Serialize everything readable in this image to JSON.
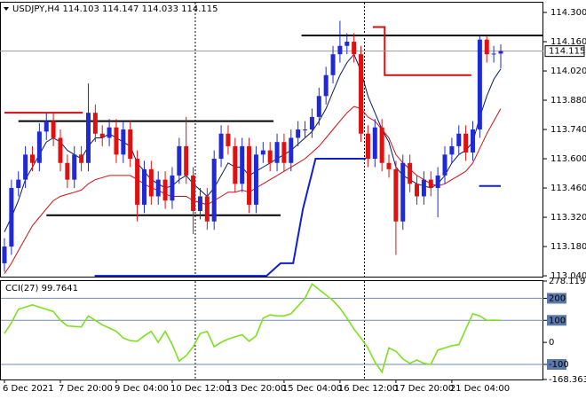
{
  "chart_data": [
    {
      "type": "candlestick",
      "title": "USDJPY,H4",
      "categories": [
        "6 Dec 2021",
        null,
        null,
        null,
        null,
        null,
        null,
        null,
        "7 Dec 20:00",
        null,
        null,
        null,
        null,
        null,
        null,
        null,
        "9 Dec 04:00",
        null,
        null,
        null,
        null,
        null,
        null,
        null,
        "10 Dec 12:00",
        null,
        null,
        null,
        null,
        null,
        null,
        null,
        "13 Dec 20:00",
        null,
        null,
        null,
        null,
        null,
        null,
        null,
        "15 Dec 04:00",
        null,
        null,
        null,
        null,
        null,
        null,
        null,
        "16 Dec 12:00",
        null,
        null,
        null,
        null,
        null,
        null,
        null,
        "17 Dec 20:00",
        null,
        null,
        null,
        null,
        null,
        null,
        null,
        "21 Dec 04:00",
        null,
        null,
        null,
        null,
        null,
        null,
        null
      ],
      "open": [
        113.1,
        113.18,
        113.46,
        113.5,
        113.62,
        113.58,
        113.73,
        113.78,
        113.7,
        113.58,
        113.5,
        113.62,
        113.58,
        113.82,
        113.72,
        113.7,
        113.75,
        113.62,
        113.74,
        113.6,
        113.38,
        113.55,
        113.42,
        113.5,
        113.4,
        113.52,
        113.66,
        113.52,
        113.35,
        113.42,
        113.3,
        113.6,
        113.72,
        113.66,
        113.48,
        113.66,
        113.38,
        113.62,
        113.64,
        113.58,
        113.68,
        113.58,
        113.7,
        113.74,
        113.74,
        113.8,
        113.9,
        114.0,
        114.1,
        114.14,
        114.16,
        114.1,
        113.72,
        113.6,
        113.75,
        113.58,
        113.55,
        113.3,
        113.58,
        113.48,
        113.42,
        113.5,
        113.46,
        113.52,
        113.62,
        113.66,
        113.72,
        113.63,
        113.74,
        114.17,
        114.1,
        114.103
      ],
      "high": [
        113.22,
        113.5,
        113.54,
        113.66,
        113.66,
        113.77,
        113.82,
        113.82,
        113.74,
        113.62,
        113.66,
        113.66,
        113.96,
        113.86,
        113.76,
        113.79,
        113.79,
        113.78,
        113.78,
        113.64,
        113.59,
        113.59,
        113.54,
        113.54,
        113.56,
        113.7,
        113.8,
        113.56,
        113.46,
        113.46,
        113.64,
        113.76,
        113.76,
        113.7,
        113.7,
        113.7,
        113.66,
        113.68,
        113.68,
        113.72,
        113.72,
        113.74,
        113.78,
        113.78,
        113.84,
        113.94,
        114.04,
        114.14,
        114.26,
        114.2,
        114.2,
        114.14,
        113.76,
        113.79,
        113.79,
        113.62,
        113.59,
        113.62,
        113.62,
        113.52,
        113.54,
        113.54,
        113.56,
        113.66,
        113.7,
        113.76,
        113.76,
        113.78,
        114.19,
        114.19,
        114.14,
        114.147
      ],
      "low": [
        113.06,
        113.14,
        113.42,
        113.46,
        113.54,
        113.54,
        113.69,
        113.66,
        113.54,
        113.46,
        113.46,
        113.54,
        113.54,
        113.68,
        113.66,
        113.66,
        113.58,
        113.58,
        113.56,
        113.3,
        113.34,
        113.38,
        113.38,
        113.36,
        113.36,
        113.48,
        113.48,
        113.24,
        113.31,
        113.26,
        113.26,
        113.56,
        113.62,
        113.44,
        113.44,
        113.34,
        113.34,
        113.58,
        113.54,
        113.54,
        113.54,
        113.54,
        113.66,
        113.7,
        113.7,
        113.76,
        113.86,
        113.96,
        114.06,
        114.1,
        114.06,
        113.68,
        113.56,
        113.56,
        113.54,
        113.51,
        113.14,
        113.26,
        113.44,
        113.38,
        113.38,
        113.42,
        113.32,
        113.48,
        113.58,
        113.62,
        113.59,
        113.59,
        113.7,
        114.06,
        114.06,
        114.033
      ],
      "close": [
        113.18,
        113.46,
        113.5,
        113.62,
        113.58,
        113.73,
        113.78,
        113.7,
        113.58,
        113.5,
        113.62,
        113.58,
        113.82,
        113.72,
        113.7,
        113.75,
        113.62,
        113.74,
        113.6,
        113.38,
        113.55,
        113.42,
        113.5,
        113.4,
        113.52,
        113.66,
        113.52,
        113.35,
        113.42,
        113.3,
        113.6,
        113.72,
        113.66,
        113.48,
        113.66,
        113.38,
        113.62,
        113.64,
        113.58,
        113.68,
        113.58,
        113.7,
        113.74,
        113.74,
        113.8,
        113.9,
        114.0,
        114.1,
        114.14,
        114.16,
        114.1,
        113.72,
        113.6,
        113.75,
        113.58,
        113.55,
        113.3,
        113.58,
        113.48,
        113.42,
        113.5,
        113.46,
        113.52,
        113.62,
        113.66,
        113.72,
        113.63,
        113.74,
        114.17,
        114.1,
        114.103,
        114.115
      ],
      "up_color": "#1f2ad6",
      "down_color": "#e01010",
      "overlays": [
        {
          "color": "#0a1a66",
          "values": [
            113.25,
            113.32,
            113.4,
            113.5,
            113.56,
            113.62,
            113.68,
            113.7,
            113.68,
            113.64,
            113.62,
            113.6,
            113.66,
            113.7,
            113.7,
            113.72,
            113.7,
            113.68,
            113.66,
            113.58,
            113.54,
            113.5,
            113.48,
            113.46,
            113.47,
            113.5,
            113.52,
            113.48,
            113.45,
            113.42,
            113.46,
            113.52,
            113.58,
            113.56,
            113.56,
            113.52,
            113.54,
            113.56,
            113.58,
            113.6,
            113.62,
            113.64,
            113.67,
            113.7,
            113.73,
            113.78,
            113.84,
            113.92,
            114.0,
            114.06,
            114.1,
            114.02,
            113.9,
            113.82,
            113.74,
            113.68,
            113.56,
            113.52,
            113.5,
            113.48,
            113.47,
            113.46,
            113.48,
            113.52,
            113.58,
            113.62,
            113.64,
            113.68,
            113.8,
            113.9,
            113.98,
            114.03
          ]
        },
        {
          "color": "#d01010",
          "values": [
            113.05,
            113.1,
            113.16,
            113.22,
            113.28,
            113.32,
            113.36,
            113.4,
            113.42,
            113.43,
            113.44,
            113.45,
            113.48,
            113.5,
            113.51,
            113.52,
            113.52,
            113.52,
            113.52,
            113.5,
            113.48,
            113.46,
            113.45,
            113.43,
            113.42,
            113.42,
            113.42,
            113.4,
            113.39,
            113.38,
            113.4,
            113.42,
            113.44,
            113.44,
            113.45,
            113.44,
            113.46,
            113.48,
            113.5,
            113.52,
            113.54,
            113.56,
            113.58,
            113.6,
            113.63,
            113.66,
            113.7,
            113.74,
            113.78,
            113.82,
            113.85,
            113.84,
            113.8,
            113.78,
            113.74,
            113.7,
            113.62,
            113.58,
            113.55,
            113.52,
            113.5,
            113.48,
            113.47,
            113.48,
            113.5,
            113.52,
            113.54,
            113.58,
            113.65,
            113.72,
            113.78,
            113.84
          ]
        }
      ],
      "levels": [
        {
          "color": "#000000",
          "value": 113.78,
          "from": 2,
          "to": 38.5
        },
        {
          "color": "#000000",
          "value": 113.33,
          "from": 6,
          "to": 39.5
        },
        {
          "color": "#000000",
          "value": 114.19,
          "from": 42.5,
          "to": 77
        },
        {
          "color": "#d01010",
          "value": 113.82,
          "from": 0,
          "to": 11.2
        }
      ],
      "step_lines": [
        {
          "color": "#d01010",
          "x": [
            52.7,
            54.4,
            54.4,
            66.8
          ],
          "values": [
            114.23,
            114.23,
            114.0,
            114.0
          ]
        },
        {
          "color": "#1020d0",
          "x": [
            12.9,
            37.5,
            39.5,
            41.3,
            42.7,
            44.5,
            51.7,
            null,
            67.9,
            71
          ],
          "values": [
            113.04,
            113.04,
            113.1,
            113.1,
            113.36,
            113.6,
            113.6,
            null,
            113.47,
            113.47
          ]
        }
      ],
      "separators": [
        27.3,
        51.5
      ],
      "ylim": [
        113.036,
        114.351
      ],
      "yticks": [
        {
          "value": 114.3,
          "label": "114.300"
        },
        {
          "value": 114.16,
          "label": "114.160"
        },
        {
          "value": 114.02,
          "label": "114.020"
        },
        {
          "value": 113.88,
          "label": "113.880"
        },
        {
          "value": 113.74,
          "label": "113.740"
        },
        {
          "value": 113.6,
          "label": "113.600"
        },
        {
          "value": 113.46,
          "label": "113.460"
        },
        {
          "value": 113.32,
          "label": "113.320"
        },
        {
          "value": 113.18,
          "label": "113.180"
        },
        {
          "value": 113.04,
          "label": "113.040"
        }
      ]
    },
    {
      "type": "line",
      "title": "CCI(27)",
      "color": "#7ee01e",
      "values": [
        40,
        90,
        150,
        160,
        170,
        160,
        150,
        140,
        100,
        75,
        72,
        70,
        120,
        100,
        80,
        65,
        50,
        20,
        8,
        5,
        30,
        50,
        0,
        50,
        -10,
        -85,
        -60,
        -20,
        40,
        50,
        -20,
        0,
        15,
        25,
        35,
        5,
        30,
        110,
        125,
        120,
        120,
        130,
        165,
        200,
        265,
        240,
        215,
        190,
        155,
        110,
        60,
        20,
        -25,
        -90,
        -135,
        -25,
        -40,
        -75,
        -95,
        -80,
        -95,
        -100,
        -35,
        -25,
        -15,
        -10,
        60,
        130,
        120,
        100,
        101,
        99.7641
      ],
      "ylim": [
        -168.3636,
        278.1197
      ],
      "yticks": [
        278.1197,
        200,
        100,
        0,
        -100,
        -168.3636
      ],
      "levels": [
        200,
        100,
        -100
      ]
    }
  ]
}
